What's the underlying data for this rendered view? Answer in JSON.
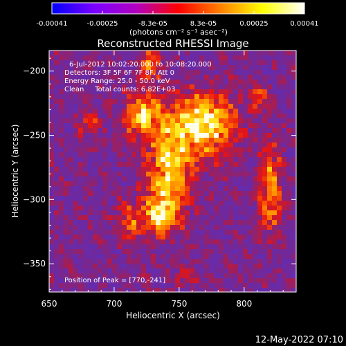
{
  "chart_data": {
    "type": "heatmap",
    "title": "Reconstructed RHESSI Image",
    "colorbar": {
      "tick_labels": [
        "-0.00041",
        "-0.00025",
        "-8.3e-05",
        "8.3e-05",
        "0.00025",
        "0.00041"
      ],
      "range": [
        -0.00041,
        0.00041
      ],
      "units_label": "(photons cm⁻² s⁻¹ asec⁻²)",
      "colors": [
        "#0000ff",
        "#7a00ff",
        "#b000c0",
        "#ff0000",
        "#ff8000",
        "#ffff00",
        "#ffffff"
      ]
    },
    "xlabel": "Heliocentric X (arcsec)",
    "ylabel": "Heliocentric Y (arcsec)",
    "xlim": [
      650,
      840
    ],
    "ylim": [
      -372,
      -184
    ],
    "xticks": [
      650,
      700,
      750,
      800
    ],
    "yticks": [
      -200,
      -250,
      -300,
      -350
    ],
    "annotations": [
      "6-Jul-2012 10:02:20.000 to 10:08:20.000",
      "Detectors: 3F 5F 6F 7F 8F, Att 0",
      "Energy Range: 25.0 - 50.0 keV",
      "Clean     Total counts: 6.82E+03"
    ],
    "peak_label": "Position of Peak = [770,-241]",
    "peak": [
      770,
      -241
    ],
    "sources": [
      {
        "x": 722,
        "y": -235,
        "sx": 11,
        "sy": 11,
        "amp": 0.85
      },
      {
        "x": 770,
        "y": -241,
        "sx": 16,
        "sy": 17,
        "amp": 1.0
      },
      {
        "x": 742,
        "y": -275,
        "sx": 11,
        "sy": 26,
        "amp": 0.88
      },
      {
        "x": 735,
        "y": -312,
        "sx": 9,
        "sy": 11,
        "amp": 0.72
      },
      {
        "x": 712,
        "y": -318,
        "sx": 7,
        "sy": 11,
        "amp": 0.5
      },
      {
        "x": 728,
        "y": -195,
        "sx": 5,
        "sy": 9,
        "amp": 0.62
      },
      {
        "x": 820,
        "y": -292,
        "sx": 6,
        "sy": 24,
        "amp": 0.68
      },
      {
        "x": 680,
        "y": -240,
        "sx": 5,
        "sy": 7,
        "amp": 0.45
      },
      {
        "x": 812,
        "y": -220,
        "sx": 5,
        "sy": 7,
        "amp": 0.42
      },
      {
        "x": 755,
        "y": -360,
        "sx": 6,
        "sy": 7,
        "amp": 0.3
      }
    ]
  },
  "footer": {
    "timestamp": "12-May-2022 07:10"
  }
}
